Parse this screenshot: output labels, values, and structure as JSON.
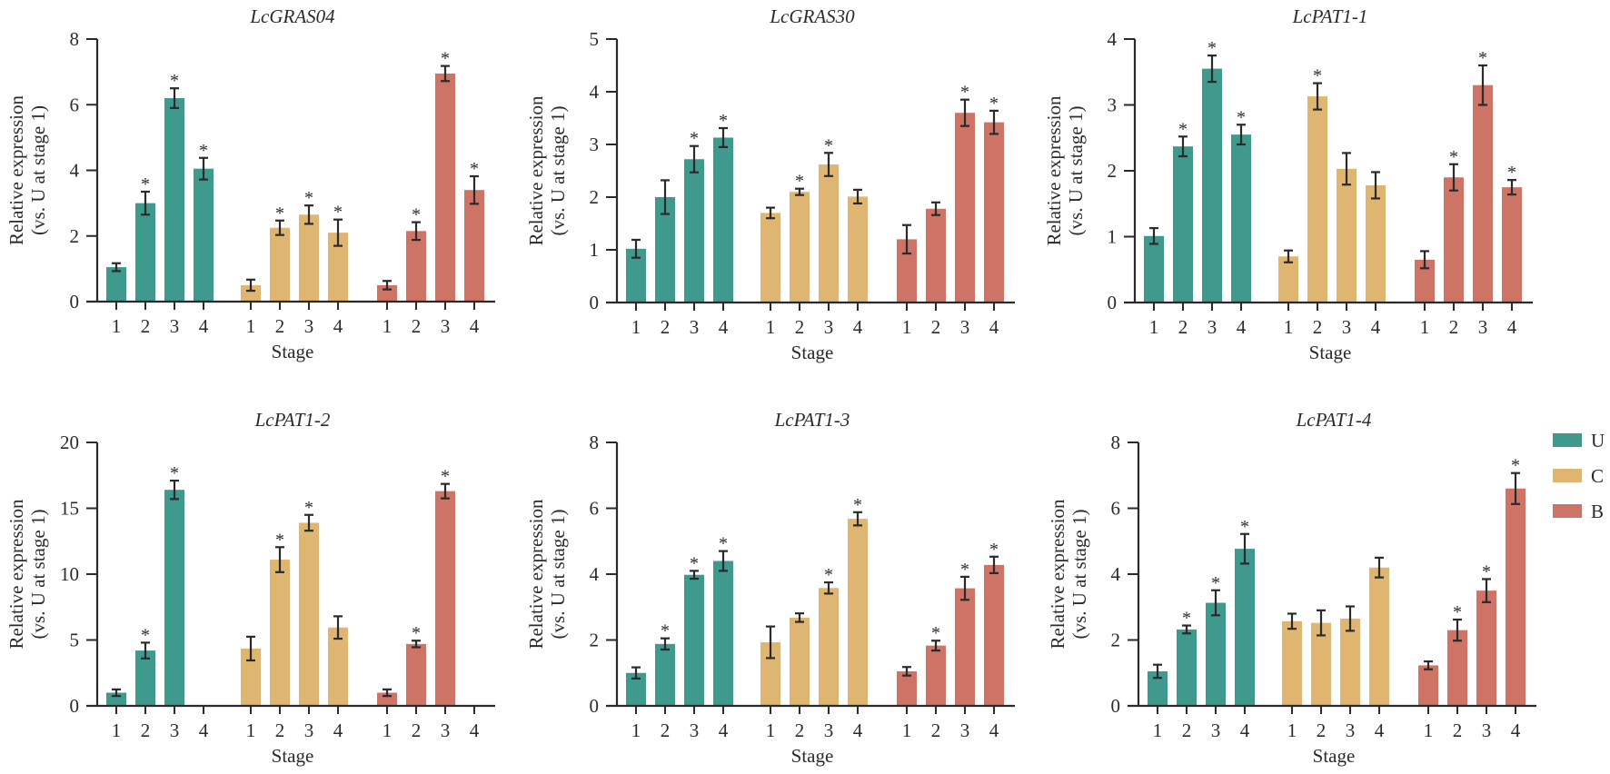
{
  "chart_data": [
    {
      "type": "bar",
      "title": "LcGRAS04",
      "xlabel": "Stage",
      "ylabel": "Relative expression (vs. U at stage 1)",
      "ylabel_lines": [
        "Relative expression",
        "(vs. U at stage 1)"
      ],
      "categories": [
        "1",
        "2",
        "3",
        "4"
      ],
      "ylim": [
        0,
        8
      ],
      "yticks": [
        0,
        2,
        4,
        6,
        8
      ],
      "series": [
        {
          "name": "U",
          "values": [
            1.05,
            3.0,
            6.2,
            4.05
          ],
          "errors": [
            0.12,
            0.35,
            0.3,
            0.33
          ],
          "significant": [
            false,
            true,
            true,
            true
          ]
        },
        {
          "name": "C",
          "values": [
            0.5,
            2.25,
            2.65,
            2.1
          ],
          "errors": [
            0.17,
            0.22,
            0.28,
            0.4
          ],
          "significant": [
            false,
            true,
            true,
            true
          ]
        },
        {
          "name": "B",
          "values": [
            0.5,
            2.15,
            6.95,
            3.4
          ],
          "errors": [
            0.13,
            0.27,
            0.23,
            0.42
          ],
          "significant": [
            false,
            true,
            true,
            true
          ]
        }
      ]
    },
    {
      "type": "bar",
      "title": "LcGRAS30",
      "xlabel": "Stage",
      "ylabel": "Relative expression (vs. U at stage 1)",
      "ylabel_lines": [
        "Relative expression",
        "(vs. U at stage 1)"
      ],
      "categories": [
        "1",
        "2",
        "3",
        "4"
      ],
      "ylim": [
        0,
        5
      ],
      "yticks": [
        0,
        1,
        2,
        3,
        4,
        5
      ],
      "series": [
        {
          "name": "U",
          "values": [
            1.02,
            2.0,
            2.72,
            3.13
          ],
          "errors": [
            0.17,
            0.32,
            0.25,
            0.18
          ],
          "significant": [
            false,
            false,
            true,
            true
          ]
        },
        {
          "name": "C",
          "values": [
            1.7,
            2.1,
            2.62,
            2.01
          ],
          "errors": [
            0.1,
            0.06,
            0.22,
            0.13
          ],
          "significant": [
            false,
            true,
            true,
            false
          ]
        },
        {
          "name": "B",
          "values": [
            1.2,
            1.78,
            3.6,
            3.42
          ],
          "errors": [
            0.27,
            0.12,
            0.25,
            0.22
          ],
          "significant": [
            false,
            false,
            true,
            true
          ]
        }
      ]
    },
    {
      "type": "bar",
      "title": "LcPAT1-1",
      "xlabel": "Stage",
      "ylabel": "Relative expression (vs. U at stage 1)",
      "ylabel_lines": [
        "Relative expression",
        "(vs. U at stage 1)"
      ],
      "categories": [
        "1",
        "2",
        "3",
        "4"
      ],
      "ylim": [
        0,
        4
      ],
      "yticks": [
        0,
        1,
        2,
        3,
        4
      ],
      "series": [
        {
          "name": "U",
          "values": [
            1.01,
            2.37,
            3.55,
            2.55
          ],
          "errors": [
            0.12,
            0.15,
            0.2,
            0.15
          ],
          "significant": [
            false,
            true,
            true,
            true
          ]
        },
        {
          "name": "C",
          "values": [
            0.7,
            3.13,
            2.03,
            1.78
          ],
          "errors": [
            0.09,
            0.2,
            0.24,
            0.2
          ],
          "significant": [
            false,
            true,
            false,
            false
          ]
        },
        {
          "name": "B",
          "values": [
            0.65,
            1.9,
            3.3,
            1.75
          ],
          "errors": [
            0.13,
            0.2,
            0.3,
            0.11
          ],
          "significant": [
            false,
            true,
            true,
            true
          ]
        }
      ]
    },
    {
      "type": "bar",
      "title": "LcPAT1-2",
      "xlabel": "Stage",
      "ylabel": "Relative expression (vs. U at stage 1)",
      "ylabel_lines": [
        "Relative expression",
        "(vs. U at stage 1)"
      ],
      "categories": [
        "1",
        "2",
        "3",
        "4"
      ],
      "ylim": [
        0,
        20
      ],
      "yticks": [
        0,
        5,
        10,
        15,
        20
      ],
      "series": [
        {
          "name": "U",
          "values": [
            1.0,
            4.2,
            16.4,
            0.05
          ],
          "errors": [
            0.25,
            0.6,
            0.7,
            0.0
          ],
          "significant": [
            false,
            true,
            true,
            false
          ]
        },
        {
          "name": "C",
          "values": [
            4.35,
            11.1,
            13.9,
            5.95
          ],
          "errors": [
            0.9,
            0.95,
            0.6,
            0.85
          ],
          "significant": [
            false,
            true,
            true,
            false
          ]
        },
        {
          "name": "B",
          "values": [
            1.0,
            4.7,
            16.3,
            0.05
          ],
          "errors": [
            0.25,
            0.25,
            0.55,
            0.0
          ],
          "significant": [
            false,
            true,
            true,
            false
          ]
        }
      ]
    },
    {
      "type": "bar",
      "title": "LcPAT1-3",
      "xlabel": "Stage",
      "ylabel": "Relative expression (vs. U at stage 1)",
      "ylabel_lines": [
        "Relative expression",
        "(vs. U at stage 1)"
      ],
      "categories": [
        "1",
        "2",
        "3",
        "4"
      ],
      "ylim": [
        0,
        8
      ],
      "yticks": [
        0,
        2,
        4,
        6,
        8
      ],
      "series": [
        {
          "name": "U",
          "values": [
            1.0,
            1.88,
            3.98,
            4.4
          ],
          "errors": [
            0.17,
            0.17,
            0.12,
            0.3
          ],
          "significant": [
            false,
            true,
            true,
            true
          ]
        },
        {
          "name": "C",
          "values": [
            1.93,
            2.68,
            3.58,
            5.68
          ],
          "errors": [
            0.48,
            0.13,
            0.17,
            0.2
          ],
          "significant": [
            false,
            false,
            true,
            true
          ]
        },
        {
          "name": "B",
          "values": [
            1.05,
            1.83,
            3.57,
            4.28
          ],
          "errors": [
            0.13,
            0.15,
            0.35,
            0.25
          ],
          "significant": [
            false,
            true,
            true,
            true
          ]
        }
      ]
    },
    {
      "type": "bar",
      "title": "LcPAT1-4",
      "xlabel": "Stage",
      "ylabel": "Relative expression (vs. U at stage 1)",
      "ylabel_lines": [
        "Relative expression",
        "(vs. U at stage 1)"
      ],
      "categories": [
        "1",
        "2",
        "3",
        "4"
      ],
      "ylim": [
        0,
        8
      ],
      "yticks": [
        0,
        2,
        4,
        6,
        8
      ],
      "series": [
        {
          "name": "U",
          "values": [
            1.05,
            2.32,
            3.13,
            4.77
          ],
          "errors": [
            0.2,
            0.12,
            0.38,
            0.45
          ],
          "significant": [
            false,
            true,
            true,
            true
          ]
        },
        {
          "name": "C",
          "values": [
            2.57,
            2.52,
            2.65,
            4.2
          ],
          "errors": [
            0.23,
            0.38,
            0.37,
            0.3
          ],
          "significant": [
            false,
            false,
            false,
            false
          ]
        },
        {
          "name": "B",
          "values": [
            1.23,
            2.3,
            3.5,
            6.6
          ],
          "errors": [
            0.12,
            0.32,
            0.35,
            0.47
          ],
          "significant": [
            false,
            true,
            true,
            true
          ]
        }
      ]
    }
  ],
  "legend": {
    "position": "right",
    "items": [
      {
        "label": "U",
        "color": "#3f998c"
      },
      {
        "label": "C",
        "color": "#deb671"
      },
      {
        "label": "B",
        "color": "#cd7466"
      }
    ]
  },
  "colors": {
    "U": "#3f998c",
    "C": "#deb671",
    "B": "#cd7466",
    "axis": "#2a2a2a"
  },
  "significance_marker": "*"
}
